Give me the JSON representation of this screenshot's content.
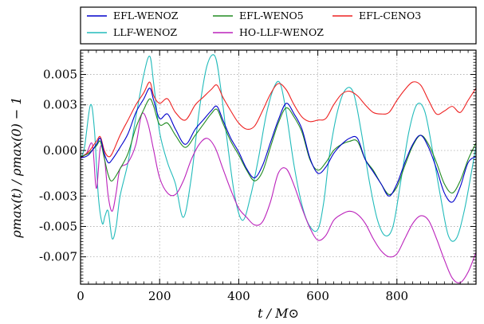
{
  "chart_data": {
    "type": "line",
    "title": "",
    "xlabel": "t / M⊙",
    "ylabel": "ρmax(t) / ρmax(0) − 1",
    "xlim": [
      0,
      1000
    ],
    "ylim": [
      -0.0088,
      0.0066
    ],
    "xticks": [
      0,
      200,
      400,
      600,
      800
    ],
    "xtick_labels": [
      "0",
      "200",
      "400",
      "600",
      "800"
    ],
    "yticks": [
      0.005,
      0.003,
      0.0,
      -0.003,
      -0.005,
      -0.007
    ],
    "ytick_labels": [
      "0.005",
      "0.003",
      "0.000",
      "-0.003",
      "-0.005",
      "-0.007"
    ],
    "grid": true,
    "legend_position": "top, above plot, 3 columns",
    "series": [
      {
        "name": "EFL-WENOZ",
        "color": "#0000cc",
        "x": [
          0,
          20,
          40,
          50,
          60,
          70,
          80,
          100,
          120,
          140,
          160,
          175,
          185,
          200,
          220,
          240,
          265,
          290,
          310,
          330,
          345,
          360,
          380,
          400,
          420,
          440,
          460,
          480,
          500,
          520,
          540,
          560,
          580,
          600,
          620,
          640,
          660,
          680,
          700,
          720,
          740,
          760,
          780,
          800,
          820,
          840,
          860,
          880,
          900,
          920,
          940,
          960,
          980,
          1000
        ],
        "y": [
          -0.0005,
          -0.0003,
          0.0004,
          0.0008,
          -0.0002,
          -0.0008,
          -0.0006,
          0.0002,
          0.0011,
          0.0025,
          0.0034,
          0.0041,
          0.0033,
          0.0021,
          0.0024,
          0.0014,
          0.0004,
          0.0014,
          0.002,
          0.0026,
          0.0029,
          0.002,
          0.0008,
          -0.0001,
          -0.0012,
          -0.0018,
          -0.001,
          0.0005,
          0.002,
          0.0031,
          0.0024,
          0.0014,
          -0.0005,
          -0.0015,
          -0.0011,
          -0.0002,
          0.0004,
          0.0008,
          0.0008,
          -0.0006,
          -0.0014,
          -0.0022,
          -0.003,
          -0.0022,
          -0.0008,
          0.0004,
          0.001,
          0.0002,
          -0.0012,
          -0.0028,
          -0.0034,
          -0.0024,
          -0.0008,
          -0.0004
        ]
      },
      {
        "name": "EFL-WENO5",
        "color": "#228b22",
        "x": [
          0,
          20,
          40,
          50,
          60,
          70,
          80,
          100,
          120,
          140,
          160,
          175,
          185,
          200,
          220,
          240,
          265,
          290,
          310,
          330,
          345,
          360,
          380,
          400,
          420,
          440,
          460,
          480,
          500,
          520,
          540,
          560,
          580,
          600,
          620,
          640,
          660,
          680,
          700,
          720,
          740,
          760,
          780,
          800,
          820,
          840,
          860,
          880,
          900,
          920,
          940,
          960,
          980,
          1000
        ],
        "y": [
          -0.0004,
          -0.0002,
          0.0003,
          0.0006,
          -0.0005,
          -0.0016,
          -0.002,
          -0.0012,
          -0.0002,
          0.0015,
          0.0027,
          0.0034,
          0.0029,
          0.0017,
          0.0018,
          0.001,
          0.0002,
          0.001,
          0.0017,
          0.0024,
          0.0027,
          0.0018,
          0.0006,
          -0.0003,
          -0.0013,
          -0.002,
          -0.0014,
          0.0002,
          0.0018,
          0.0028,
          0.0022,
          0.0012,
          -0.0006,
          -0.0013,
          -0.0008,
          0.0,
          0.0004,
          0.0006,
          0.0006,
          -0.0006,
          -0.0013,
          -0.0022,
          -0.0029,
          -0.0024,
          -0.001,
          0.0003,
          0.001,
          0.0004,
          -0.0008,
          -0.0022,
          -0.0028,
          -0.002,
          -0.0006,
          0.0005
        ]
      },
      {
        "name": "EFL-CENO3",
        "color": "#ee2222",
        "x": [
          0,
          20,
          40,
          50,
          60,
          70,
          80,
          100,
          120,
          140,
          160,
          175,
          185,
          200,
          220,
          240,
          265,
          290,
          310,
          330,
          345,
          360,
          380,
          400,
          420,
          440,
          460,
          480,
          500,
          520,
          540,
          560,
          580,
          600,
          620,
          640,
          660,
          680,
          700,
          720,
          740,
          760,
          780,
          800,
          820,
          840,
          860,
          880,
          900,
          920,
          940,
          960,
          980,
          1000
        ],
        "y": [
          -0.0005,
          -0.0001,
          0.0006,
          0.0009,
          0.0,
          -0.0004,
          -0.0002,
          0.001,
          0.002,
          0.003,
          0.0038,
          0.0045,
          0.0036,
          0.0031,
          0.0034,
          0.0025,
          0.002,
          0.003,
          0.0035,
          0.004,
          0.0043,
          0.0035,
          0.0026,
          0.0018,
          0.0014,
          0.0016,
          0.0026,
          0.0037,
          0.0044,
          0.004,
          0.003,
          0.0022,
          0.0019,
          0.002,
          0.0021,
          0.003,
          0.0037,
          0.0039,
          0.0036,
          0.003,
          0.0025,
          0.0024,
          0.0025,
          0.0033,
          0.004,
          0.0045,
          0.0043,
          0.0033,
          0.0024,
          0.0026,
          0.0029,
          0.0025,
          0.0033,
          0.0041
        ]
      },
      {
        "name": "LLF-WENOZ",
        "color": "#22bbbb",
        "x": [
          0,
          10,
          25,
          35,
          45,
          55,
          62,
          70,
          80,
          90,
          100,
          120,
          140,
          160,
          175,
          185,
          200,
          220,
          240,
          260,
          280,
          300,
          320,
          340,
          355,
          370,
          390,
          410,
          430,
          450,
          470,
          490,
          505,
          520,
          540,
          560,
          580,
          600,
          615,
          630,
          650,
          670,
          690,
          710,
          730,
          750,
          770,
          790,
          810,
          830,
          850,
          870,
          890,
          910,
          930,
          950,
          970,
          990,
          1000
        ],
        "y": [
          -0.0005,
          0.0002,
          0.003,
          0.0014,
          -0.003,
          -0.0048,
          -0.0043,
          -0.004,
          -0.0058,
          -0.005,
          -0.003,
          -0.0008,
          0.0022,
          0.005,
          0.0062,
          0.0044,
          0.0012,
          -0.0008,
          -0.0022,
          -0.0044,
          -0.0018,
          0.0026,
          0.0056,
          0.0062,
          0.004,
          0.0008,
          -0.003,
          -0.0046,
          -0.003,
          -0.0005,
          0.0024,
          0.0042,
          0.0044,
          0.0025,
          -0.001,
          -0.0036,
          -0.005,
          -0.0052,
          -0.0034,
          -0.0002,
          0.0026,
          0.004,
          0.0038,
          0.0012,
          -0.002,
          -0.0045,
          -0.0056,
          -0.005,
          -0.002,
          0.0012,
          0.003,
          0.0026,
          0.0,
          -0.003,
          -0.0056,
          -0.0058,
          -0.004,
          -0.0012,
          0.0003
        ]
      },
      {
        "name": "HO-LLF-WENOZ",
        "color": "#bb22bb",
        "x": [
          0,
          15,
          30,
          40,
          50,
          60,
          70,
          80,
          90,
          100,
          120,
          140,
          155,
          170,
          185,
          200,
          220,
          240,
          260,
          280,
          300,
          320,
          340,
          360,
          380,
          400,
          420,
          440,
          460,
          480,
          500,
          520,
          540,
          560,
          580,
          600,
          620,
          640,
          660,
          680,
          700,
          720,
          740,
          760,
          780,
          800,
          820,
          840,
          860,
          880,
          900,
          920,
          940,
          960,
          980,
          1000
        ],
        "y": [
          -0.0004,
          -0.0002,
          0.0004,
          -0.0025,
          0.0002,
          -0.0004,
          -0.003,
          -0.004,
          -0.0028,
          -0.0012,
          -0.0008,
          0.0004,
          0.0024,
          0.0018,
          0.0,
          -0.0018,
          -0.0028,
          -0.0029,
          -0.002,
          -0.0006,
          0.0004,
          0.0008,
          0.0002,
          -0.0012,
          -0.0026,
          -0.0038,
          -0.0044,
          -0.0049,
          -0.0047,
          -0.0034,
          -0.0015,
          -0.0012,
          -0.0023,
          -0.0038,
          -0.0051,
          -0.0059,
          -0.0056,
          -0.0046,
          -0.0042,
          -0.004,
          -0.0042,
          -0.0048,
          -0.0058,
          -0.0066,
          -0.007,
          -0.0068,
          -0.0058,
          -0.0048,
          -0.0043,
          -0.0046,
          -0.0058,
          -0.0072,
          -0.0084,
          -0.0087,
          -0.008,
          -0.0067
        ]
      }
    ]
  }
}
